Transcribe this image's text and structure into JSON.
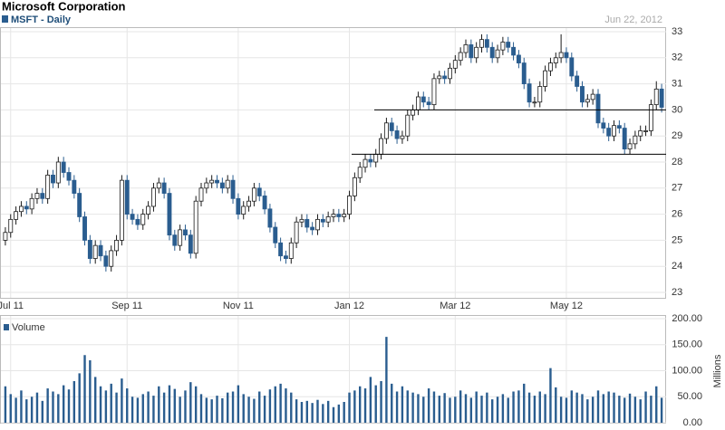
{
  "chart_data": {
    "type": "candlestick",
    "title": "Microsoft Corporation",
    "series_name": "MSFT - Daily",
    "date_note": "Jun 22, 2012",
    "up_color": "#ffffff",
    "down_color": "#2a5d8f",
    "outline_color": "#1a1a1a",
    "grid": true,
    "ylim": [
      23,
      33
    ],
    "yticks": [
      23,
      24,
      25,
      26,
      27,
      28,
      29,
      30,
      31,
      32,
      33
    ],
    "levels": [
      30.0,
      28.3
    ],
    "categories": [
      null,
      "Jul 11",
      null,
      null,
      null,
      null,
      null,
      null,
      null,
      null,
      null,
      null,
      null,
      null,
      null,
      null,
      null,
      null,
      null,
      null,
      null,
      null,
      null,
      "Sep 11",
      null,
      null,
      null,
      null,
      null,
      null,
      null,
      null,
      null,
      null,
      null,
      null,
      null,
      null,
      null,
      null,
      null,
      null,
      null,
      null,
      "Nov 11",
      null,
      null,
      null,
      null,
      null,
      null,
      null,
      null,
      null,
      null,
      null,
      null,
      null,
      null,
      null,
      null,
      null,
      null,
      null,
      null,
      "Jan 12",
      null,
      null,
      null,
      null,
      null,
      null,
      null,
      null,
      null,
      null,
      null,
      null,
      null,
      null,
      null,
      null,
      null,
      null,
      null,
      "Mar 12",
      null,
      null,
      null,
      null,
      null,
      null,
      null,
      null,
      null,
      null,
      null,
      null,
      null,
      null,
      null,
      null,
      null,
      null,
      null,
      null,
      "May 12",
      null,
      null,
      null,
      null,
      null,
      null,
      null,
      null,
      null,
      null,
      null,
      null,
      null,
      null,
      null,
      null,
      null,
      null
    ],
    "ohlc": [
      [
        25.0,
        25.5,
        24.8,
        25.3
      ],
      [
        25.3,
        26.0,
        25.1,
        25.8
      ],
      [
        25.8,
        26.3,
        25.6,
        26.1
      ],
      [
        26.1,
        26.5,
        25.9,
        26.3
      ],
      [
        26.3,
        26.5,
        26.0,
        26.2
      ],
      [
        26.2,
        26.8,
        26.0,
        26.6
      ],
      [
        26.6,
        27.0,
        26.4,
        26.8
      ],
      [
        26.8,
        27.0,
        26.4,
        26.6
      ],
      [
        26.6,
        27.7,
        26.4,
        27.5
      ],
      [
        27.5,
        27.7,
        27.0,
        27.2
      ],
      [
        27.2,
        28.2,
        27.0,
        28.0
      ],
      [
        28.0,
        28.2,
        27.4,
        27.6
      ],
      [
        27.6,
        27.8,
        27.1,
        27.3
      ],
      [
        27.3,
        27.5,
        26.6,
        26.8
      ],
      [
        26.8,
        27.0,
        25.7,
        25.9
      ],
      [
        25.9,
        26.1,
        24.8,
        25.0
      ],
      [
        25.0,
        25.2,
        24.1,
        24.3
      ],
      [
        24.3,
        25.0,
        24.1,
        24.8
      ],
      [
        24.8,
        25.0,
        24.2,
        24.4
      ],
      [
        24.4,
        24.6,
        23.8,
        24.0
      ],
      [
        24.0,
        24.8,
        23.8,
        24.6
      ],
      [
        24.6,
        25.2,
        24.4,
        25.0
      ],
      [
        25.0,
        27.5,
        24.8,
        27.3
      ],
      [
        27.3,
        27.5,
        25.8,
        26.0
      ],
      [
        26.0,
        26.2,
        25.6,
        25.8
      ],
      [
        25.8,
        26.0,
        25.4,
        25.6
      ],
      [
        25.6,
        26.2,
        25.4,
        26.0
      ],
      [
        26.0,
        26.5,
        25.8,
        26.3
      ],
      [
        26.3,
        27.2,
        26.1,
        27.0
      ],
      [
        27.0,
        27.4,
        26.8,
        27.2
      ],
      [
        27.2,
        27.4,
        26.6,
        26.8
      ],
      [
        26.8,
        27.0,
        25.0,
        25.2
      ],
      [
        25.2,
        25.4,
        24.6,
        24.8
      ],
      [
        24.8,
        25.6,
        24.6,
        25.4
      ],
      [
        25.4,
        25.6,
        25.0,
        25.2
      ],
      [
        25.2,
        25.4,
        24.3,
        24.5
      ],
      [
        24.5,
        26.7,
        24.3,
        26.5
      ],
      [
        26.5,
        27.2,
        26.3,
        27.0
      ],
      [
        27.0,
        27.4,
        26.8,
        27.2
      ],
      [
        27.2,
        27.5,
        27.0,
        27.3
      ],
      [
        27.3,
        27.5,
        27.0,
        27.2
      ],
      [
        27.2,
        27.4,
        26.8,
        27.0
      ],
      [
        27.0,
        27.5,
        26.8,
        27.3
      ],
      [
        27.3,
        27.5,
        26.4,
        26.6
      ],
      [
        26.6,
        26.8,
        25.8,
        26.0
      ],
      [
        26.0,
        26.5,
        25.8,
        26.3
      ],
      [
        26.3,
        26.7,
        26.1,
        26.5
      ],
      [
        26.5,
        27.2,
        26.3,
        27.0
      ],
      [
        27.0,
        27.2,
        26.5,
        26.7
      ],
      [
        26.7,
        26.9,
        26.0,
        26.2
      ],
      [
        26.2,
        26.4,
        25.3,
        25.5
      ],
      [
        25.5,
        25.7,
        24.7,
        24.9
      ],
      [
        24.9,
        25.1,
        24.2,
        24.4
      ],
      [
        24.4,
        24.6,
        24.1,
        24.3
      ],
      [
        24.3,
        25.1,
        24.1,
        24.9
      ],
      [
        24.9,
        25.9,
        24.7,
        25.7
      ],
      [
        25.7,
        26.0,
        25.5,
        25.8
      ],
      [
        25.8,
        26.0,
        25.3,
        25.5
      ],
      [
        25.5,
        25.7,
        25.2,
        25.4
      ],
      [
        25.4,
        26.0,
        25.2,
        25.8
      ],
      [
        25.8,
        26.0,
        25.5,
        25.7
      ],
      [
        25.7,
        26.1,
        25.5,
        25.9
      ],
      [
        25.9,
        26.2,
        25.7,
        26.0
      ],
      [
        26.0,
        26.2,
        25.7,
        25.9
      ],
      [
        25.9,
        26.2,
        25.7,
        26.0
      ],
      [
        26.0,
        26.9,
        25.8,
        26.7
      ],
      [
        26.7,
        27.6,
        26.5,
        27.4
      ],
      [
        27.4,
        28.0,
        27.2,
        27.8
      ],
      [
        27.8,
        28.3,
        27.6,
        28.1
      ],
      [
        28.1,
        28.3,
        27.8,
        28.0
      ],
      [
        28.0,
        28.5,
        27.8,
        28.3
      ],
      [
        28.3,
        29.1,
        28.1,
        28.9
      ],
      [
        28.9,
        29.7,
        28.7,
        29.5
      ],
      [
        29.5,
        29.7,
        29.0,
        29.2
      ],
      [
        29.2,
        29.4,
        28.7,
        28.9
      ],
      [
        28.9,
        29.2,
        28.7,
        29.0
      ],
      [
        29.0,
        30.0,
        28.8,
        29.8
      ],
      [
        29.8,
        30.2,
        29.6,
        30.0
      ],
      [
        30.0,
        30.7,
        29.8,
        30.5
      ],
      [
        30.5,
        30.7,
        30.1,
        30.3
      ],
      [
        30.3,
        30.5,
        30.0,
        30.2
      ],
      [
        30.2,
        31.4,
        30.0,
        31.2
      ],
      [
        31.2,
        31.5,
        31.0,
        31.3
      ],
      [
        31.3,
        31.5,
        31.0,
        31.2
      ],
      [
        31.2,
        31.8,
        31.0,
        31.6
      ],
      [
        31.6,
        32.1,
        31.4,
        31.9
      ],
      [
        31.9,
        32.4,
        31.7,
        32.2
      ],
      [
        32.2,
        32.7,
        32.0,
        32.5
      ],
      [
        32.5,
        32.7,
        31.8,
        32.0
      ],
      [
        32.0,
        32.6,
        31.8,
        32.4
      ],
      [
        32.4,
        32.9,
        32.2,
        32.7
      ],
      [
        32.7,
        32.9,
        32.2,
        32.4
      ],
      [
        32.4,
        32.6,
        31.8,
        32.0
      ],
      [
        32.0,
        32.5,
        31.8,
        32.3
      ],
      [
        32.3,
        32.8,
        32.1,
        32.6
      ],
      [
        32.6,
        32.8,
        32.2,
        32.4
      ],
      [
        32.4,
        32.6,
        31.9,
        32.1
      ],
      [
        32.1,
        32.3,
        31.6,
        31.8
      ],
      [
        31.8,
        32.0,
        30.8,
        31.0
      ],
      [
        31.0,
        31.2,
        30.1,
        30.3
      ],
      [
        30.3,
        30.5,
        30.1,
        30.3
      ],
      [
        30.3,
        31.1,
        30.1,
        30.9
      ],
      [
        30.9,
        31.7,
        30.7,
        31.5
      ],
      [
        31.5,
        32.0,
        31.3,
        31.8
      ],
      [
        31.8,
        32.2,
        31.6,
        32.0
      ],
      [
        32.0,
        32.9,
        31.8,
        32.2
      ],
      [
        32.2,
        32.4,
        31.8,
        32.0
      ],
      [
        32.0,
        32.2,
        31.1,
        31.3
      ],
      [
        31.3,
        31.5,
        30.7,
        30.9
      ],
      [
        30.9,
        31.1,
        30.1,
        30.3
      ],
      [
        30.3,
        30.6,
        30.1,
        30.4
      ],
      [
        30.4,
        30.8,
        30.2,
        30.6
      ],
      [
        30.6,
        30.8,
        29.3,
        29.5
      ],
      [
        29.5,
        29.7,
        29.1,
        29.3
      ],
      [
        29.3,
        29.5,
        28.8,
        29.0
      ],
      [
        29.0,
        29.6,
        28.8,
        29.4
      ],
      [
        29.4,
        29.6,
        29.1,
        29.3
      ],
      [
        29.3,
        29.5,
        28.3,
        28.5
      ],
      [
        28.5,
        28.9,
        28.3,
        28.7
      ],
      [
        28.7,
        29.2,
        28.5,
        29.0
      ],
      [
        29.0,
        29.4,
        28.8,
        29.2
      ],
      [
        29.2,
        29.4,
        29.0,
        29.2
      ],
      [
        29.2,
        30.4,
        29.0,
        30.2
      ],
      [
        30.2,
        31.1,
        30.0,
        30.8
      ],
      [
        30.8,
        31.0,
        29.9,
        30.1
      ]
    ],
    "volume": {
      "name": "Volume",
      "color": "#2a5d8f",
      "y_label": "Millions",
      "ylim": [
        0,
        200
      ],
      "yticks": [
        {
          "value": 0,
          "label": "0.00"
        },
        {
          "value": 50,
          "label": "50.00"
        },
        {
          "value": 100,
          "label": "100.00"
        },
        {
          "value": 150,
          "label": "150.00"
        },
        {
          "value": 200,
          "label": "200.00"
        }
      ],
      "values": [
        70,
        55,
        48,
        62,
        45,
        50,
        58,
        42,
        66,
        60,
        55,
        72,
        64,
        80,
        95,
        130,
        120,
        88,
        70,
        62,
        75,
        58,
        85,
        66,
        50,
        48,
        55,
        60,
        52,
        70,
        58,
        72,
        65,
        50,
        62,
        78,
        70,
        55,
        48,
        45,
        52,
        47,
        58,
        60,
        72,
        55,
        50,
        46,
        60,
        52,
        64,
        70,
        75,
        66,
        58,
        45,
        40,
        42,
        38,
        44,
        36,
        42,
        30,
        35,
        40,
        58,
        62,
        70,
        66,
        88,
        72,
        80,
        165,
        75,
        60,
        70,
        62,
        58,
        55,
        50,
        66,
        60,
        52,
        57,
        48,
        50,
        62,
        55,
        48,
        60,
        52,
        58,
        45,
        50,
        55,
        48,
        60,
        62,
        75,
        58,
        52,
        60,
        55,
        105,
        68,
        50,
        48,
        62,
        58,
        55,
        45,
        50,
        62,
        55,
        60,
        58,
        52,
        48,
        56,
        50,
        45,
        60,
        52,
        70,
        48
      ]
    }
  }
}
